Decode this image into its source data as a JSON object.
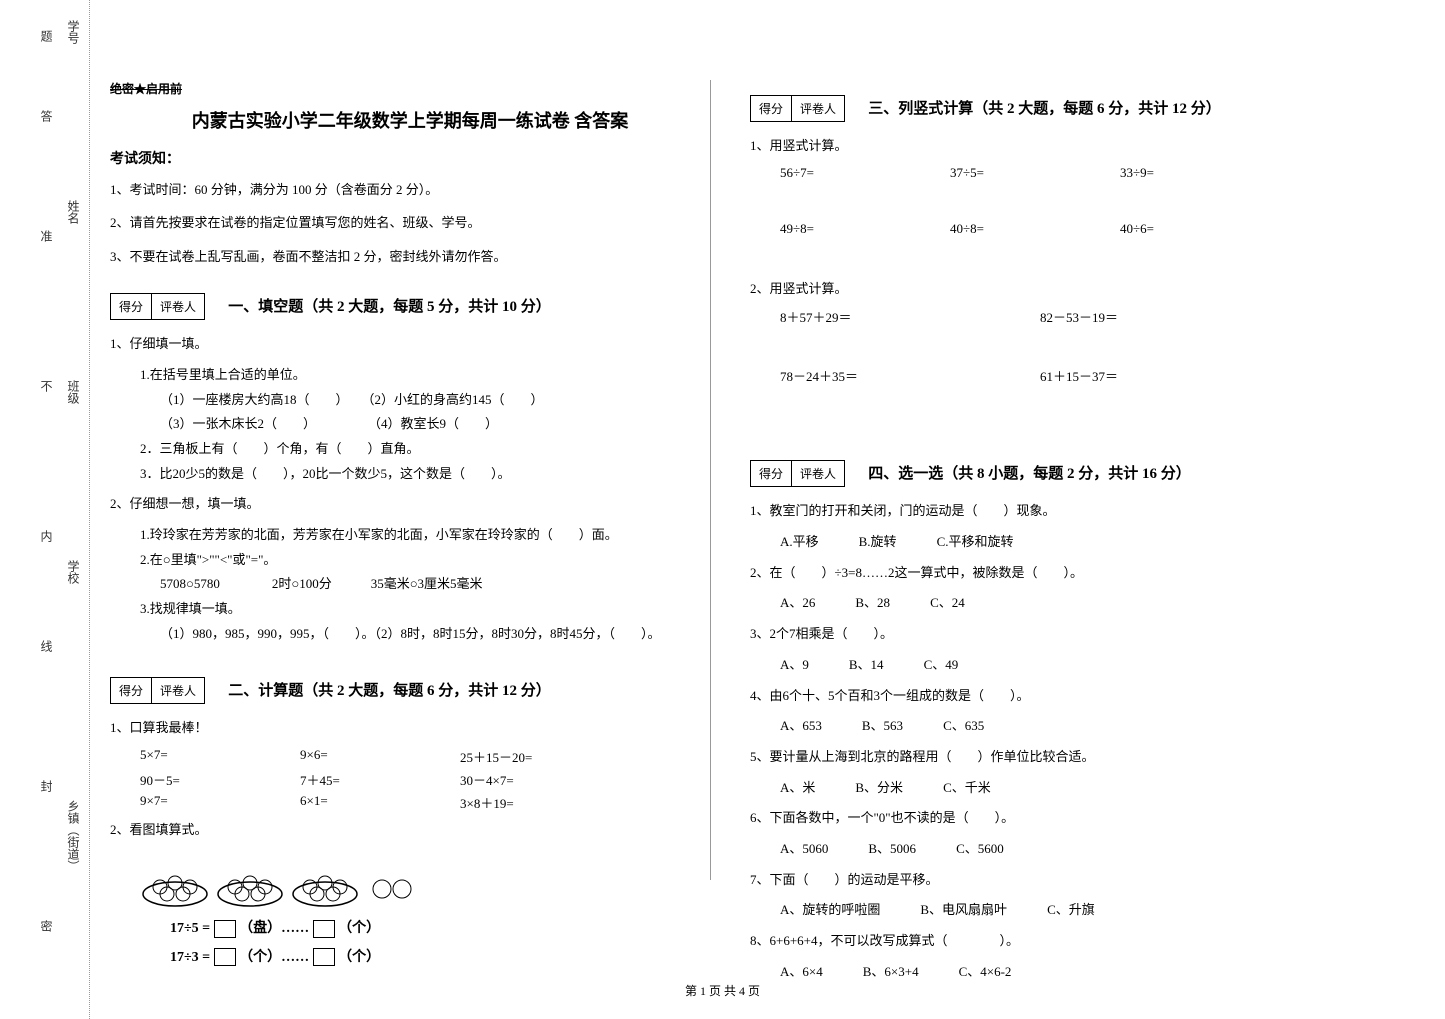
{
  "binding": {
    "labels": [
      "学号",
      "姓名",
      "班级",
      "学校",
      "乡镇（街道）"
    ],
    "hints": [
      "题",
      "答",
      "准",
      "不",
      "内",
      "线",
      "封",
      "密"
    ]
  },
  "header": {
    "secret": "绝密★启用前",
    "title": "内蒙古实验小学二年级数学上学期每周一练试卷 含答案",
    "notice_title": "考试须知：",
    "notices": [
      "1、考试时间：60 分钟，满分为 100 分（含卷面分 2 分）。",
      "2、请首先按要求在试卷的指定位置填写您的姓名、班级、学号。",
      "3、不要在试卷上乱写乱画，卷面不整洁扣 2 分，密封线外请勿作答。"
    ]
  },
  "scorebox": {
    "left": "得分",
    "right": "评卷人"
  },
  "section1": {
    "title": "一、填空题（共 2 大题，每题 5 分，共计 10 分）",
    "q1": "1、仔细填一填。",
    "q1_1": "1.在括号里填上合适的单位。",
    "q1_1a": "（1）一座楼房大约高18（　　）　　（2）小红的身高约145（　　）",
    "q1_1b": "（3）一张木床长2（　　）　　　　　（4）教室长9（　　）",
    "q1_2": "2．三角板上有（　　）个角，有（　　）直角。",
    "q1_3": "3．比20少5的数是（　　），20比一个数少5，这个数是（　　）。",
    "q2": "2、仔细想一想，填一填。",
    "q2_1": "1.玲玲家在芳芳家的北面，芳芳家在小军家的北面，小军家在玲玲家的（　　）面。",
    "q2_2": "2.在○里填\">\"\"<\"或\"=\"。",
    "q2_2a": "5708○5780　　　　2时○100分　　　35毫米○3厘米5毫米",
    "q2_3": "3.找规律填一填。",
    "q2_3a": "（1）980，985，990，995，（　　）。（2）8时，8时15分，8时30分，8时45分，（　　）。"
  },
  "section2": {
    "title": "二、计算题（共 2 大题，每题 6 分，共计 12 分）",
    "q1": "1、口算我最棒！",
    "rows": [
      [
        "5×7=",
        "9×6=",
        "25＋15－20="
      ],
      [
        "90－5=",
        "7＋45=",
        "30－4×7="
      ],
      [
        "9×7=",
        "6×1=",
        "3×8＋19="
      ]
    ],
    "q2": "2、看图填算式。",
    "eq1_left": "17÷5 =",
    "eq1_unit1": "（盘）……",
    "eq1_unit2": "（个）",
    "eq2_left": "17÷3 =",
    "eq2_unit1": "（个）……",
    "eq2_unit2": "（个）"
  },
  "section3": {
    "title": "三、列竖式计算（共 2 大题，每题 6 分，共计 12 分）",
    "q1": "1、用竖式计算。",
    "r1": [
      "56÷7=",
      "37÷5=",
      "33÷9="
    ],
    "r2": [
      "49÷8=",
      "40÷8=",
      "40÷6="
    ],
    "q2": "2、用竖式计算。",
    "r3": [
      "8＋57＋29＝",
      "82－53－19＝"
    ],
    "r4": [
      "78－24＋35＝",
      "61＋15－37＝"
    ]
  },
  "section4": {
    "title": "四、选一选（共 8 小题，每题 2 分，共计 16 分）",
    "items": [
      {
        "q": "1、教室门的打开和关闭，门的运动是（　　）现象。",
        "opts": [
          "A.平移",
          "B.旋转",
          "C.平移和旋转"
        ]
      },
      {
        "q": "2、在（　　）÷3=8……2这一算式中，被除数是（　　）。",
        "opts": [
          "A、26",
          "B、28",
          "C、24"
        ]
      },
      {
        "q": "3、2个7相乘是（　　）。",
        "opts": [
          "A、9",
          "B、14",
          "C、49"
        ]
      },
      {
        "q": "4、由6个十、5个百和3个一组成的数是（　　）。",
        "opts": [
          "A、653",
          "B、563",
          "C、635"
        ]
      },
      {
        "q": "5、要计量从上海到北京的路程用（　　）作单位比较合适。",
        "opts": [
          "A、米",
          "B、分米",
          "C、千米"
        ]
      },
      {
        "q": "6、下面各数中，一个\"0\"也不读的是（　　）。",
        "opts": [
          "A、5060",
          "B、5006",
          "C、5600"
        ]
      },
      {
        "q": "7、下面（　　）的运动是平移。",
        "opts": [
          "A、旋转的呼啦圈",
          "B、电风扇扇叶",
          "C、升旗"
        ]
      },
      {
        "q": "8、6+6+6+4，不可以改写成算式（　　　　）。",
        "opts": [
          "A、6×4",
          "B、6×3+4",
          "C、4×6-2"
        ]
      }
    ]
  },
  "footer": "第 1 页 共 4 页"
}
